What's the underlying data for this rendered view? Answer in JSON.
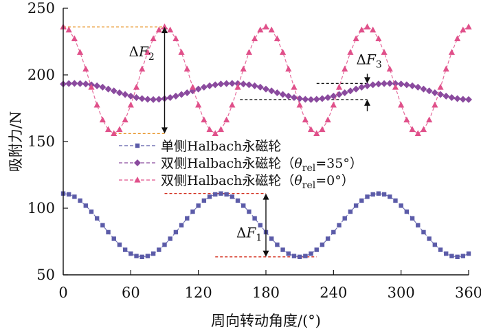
{
  "chart_data": {
    "type": "line",
    "xlabel": "周向转动角度/(°)",
    "ylabel": "吸附力/N",
    "xlim": [
      0,
      360
    ],
    "ylim": [
      50,
      250
    ],
    "xticks": [
      "0",
      "60",
      "120",
      "180",
      "240",
      "300",
      "360"
    ],
    "yticks": [
      "50",
      "100",
      "150",
      "200",
      "250"
    ],
    "grid": false,
    "legend_position": "center",
    "series": [
      {
        "name": "单侧Halbach永磁轮",
        "color": "#5b5ba8",
        "marker": "square",
        "x": [
          0,
          5,
          10,
          15,
          20,
          25,
          30,
          35,
          40,
          45,
          50,
          55,
          60,
          65,
          70,
          75,
          80,
          85,
          90,
          95,
          100,
          105,
          110,
          115,
          120,
          125,
          130,
          135,
          140,
          145,
          150,
          155,
          160,
          165,
          170,
          175,
          180,
          185,
          190,
          195,
          200,
          205,
          210,
          215,
          220,
          225,
          230,
          235,
          240,
          245,
          250,
          255,
          260,
          265,
          270,
          275,
          280,
          285,
          290,
          295,
          300,
          305,
          310,
          315,
          320,
          325,
          330,
          335,
          340,
          345,
          350,
          355,
          360
        ],
        "values": [
          111.0,
          110.4,
          108.6,
          105.7,
          101.9,
          97.4,
          92.4,
          87.2,
          82.0,
          77.1,
          72.6,
          68.8,
          65.9,
          64.1,
          63.5,
          64.1,
          65.9,
          68.8,
          72.6,
          77.1,
          82.0,
          87.2,
          92.4,
          97.4,
          101.9,
          105.7,
          108.6,
          110.4,
          111.0,
          110.4,
          108.6,
          105.7,
          101.9,
          97.4,
          92.4,
          87.2,
          82.0,
          77.1,
          72.6,
          68.8,
          65.9,
          64.1,
          63.5,
          64.1,
          65.9,
          68.8,
          72.6,
          77.1,
          82.0,
          87.2,
          92.4,
          97.4,
          101.9,
          105.7,
          108.6,
          110.4,
          111.0,
          110.4,
          108.6,
          105.7,
          101.9,
          97.4,
          92.4,
          87.2,
          82.0,
          77.1,
          72.6,
          68.8,
          65.9,
          64.1,
          63.5,
          64.1,
          65.9
        ]
      },
      {
        "name": "双侧Halbach永磁轮（θrel=35°）",
        "color": "#8a4a9e",
        "marker": "diamond",
        "x": [
          0,
          5,
          10,
          15,
          20,
          25,
          30,
          35,
          40,
          45,
          50,
          55,
          60,
          65,
          70,
          75,
          80,
          85,
          90,
          95,
          100,
          105,
          110,
          115,
          120,
          125,
          130,
          135,
          140,
          145,
          150,
          155,
          160,
          165,
          170,
          175,
          180,
          185,
          190,
          195,
          200,
          205,
          210,
          215,
          220,
          225,
          230,
          235,
          240,
          245,
          250,
          255,
          260,
          265,
          270,
          275,
          280,
          285,
          290,
          295,
          300,
          305,
          310,
          315,
          320,
          325,
          330,
          335,
          340,
          345,
          350,
          355,
          360
        ],
        "values": [
          193.2,
          193.5,
          193.6,
          193.5,
          193.2,
          192.6,
          191.8,
          190.8,
          189.4,
          188.0,
          186.6,
          185.3,
          184.1,
          183.0,
          182.2,
          181.7,
          181.5,
          181.7,
          182.2,
          183.0,
          184.1,
          185.3,
          186.6,
          188.0,
          189.4,
          190.8,
          191.8,
          192.6,
          193.2,
          193.5,
          193.6,
          193.5,
          193.2,
          192.6,
          191.8,
          190.8,
          189.4,
          188.0,
          186.6,
          185.3,
          184.1,
          183.0,
          182.2,
          181.7,
          181.5,
          181.7,
          182.2,
          183.0,
          184.1,
          185.3,
          186.6,
          188.0,
          189.4,
          190.8,
          191.8,
          192.6,
          193.2,
          193.5,
          193.6,
          193.5,
          193.2,
          192.6,
          191.8,
          190.8,
          189.4,
          188.0,
          186.6,
          185.3,
          184.1,
          183.0,
          182.2,
          181.7,
          181.5
        ]
      },
      {
        "name": "双侧Halbach永磁轮（θrel=0°）",
        "color": "#e0508a",
        "marker": "triangle",
        "x": [
          0,
          5,
          10,
          15,
          20,
          25,
          30,
          35,
          40,
          45,
          50,
          55,
          60,
          65,
          70,
          75,
          80,
          85,
          90,
          95,
          100,
          105,
          110,
          115,
          120,
          125,
          130,
          135,
          140,
          145,
          150,
          155,
          160,
          165,
          170,
          175,
          180,
          185,
          190,
          195,
          200,
          205,
          210,
          215,
          220,
          225,
          230,
          235,
          240,
          245,
          250,
          255,
          260,
          265,
          270,
          275,
          280,
          285,
          290,
          295,
          300,
          305,
          310,
          315,
          320,
          325,
          330,
          335,
          340,
          345,
          350,
          355,
          360
        ],
        "values": [
          236.0,
          233.7,
          227.1,
          216.9,
          204.4,
          190.7,
          177.4,
          166.2,
          159.0,
          156.0,
          159.0,
          166.2,
          177.4,
          190.7,
          204.4,
          216.9,
          227.1,
          233.7,
          236.0,
          233.7,
          227.1,
          216.9,
          204.4,
          190.7,
          177.4,
          166.2,
          159.0,
          156.0,
          159.0,
          166.2,
          177.4,
          190.7,
          204.4,
          216.9,
          227.1,
          233.7,
          236.0,
          233.7,
          227.1,
          216.9,
          204.4,
          190.7,
          177.4,
          166.2,
          159.0,
          156.0,
          159.0,
          166.2,
          177.4,
          190.7,
          204.4,
          216.9,
          227.1,
          233.7,
          236.0,
          233.7,
          227.1,
          216.9,
          204.4,
          190.7,
          177.4,
          166.2,
          159.0,
          156.0,
          159.0,
          166.2,
          177.4,
          190.7,
          204.4,
          216.9,
          227.1,
          233.7,
          236.0
        ]
      }
    ],
    "legend": {
      "entries": [
        {
          "prefix": "单侧Halbach永磁轮",
          "sub": "",
          "suffix": ""
        },
        {
          "prefix": "双侧Halbach永磁轮（θ",
          "sub": "rel",
          "suffix": "=35°）"
        },
        {
          "prefix": "双侧Halbach永磁轮（θ",
          "sub": "rel",
          "suffix": "=0°）"
        }
      ]
    },
    "annotations": {
      "dF2": {
        "base": "ΔF",
        "sub": "2",
        "x": 90,
        "y_low": 156,
        "y_high": 236,
        "x_from": 0,
        "x_low_from": 45
      },
      "dF3": {
        "base": "ΔF",
        "sub": "3",
        "x": 270,
        "y_low": 181.5,
        "y_high": 193.6,
        "x_from": 225
      },
      "dF1": {
        "base": "ΔF",
        "sub": "1",
        "x": 180,
        "y_low": 63.5,
        "y_high": 111,
        "x_from": 135
      }
    },
    "colors": {
      "axis": "#111111",
      "guide_orange": "#e8962a",
      "guide_black": "#111111",
      "guide_red": "#d43020"
    }
  }
}
